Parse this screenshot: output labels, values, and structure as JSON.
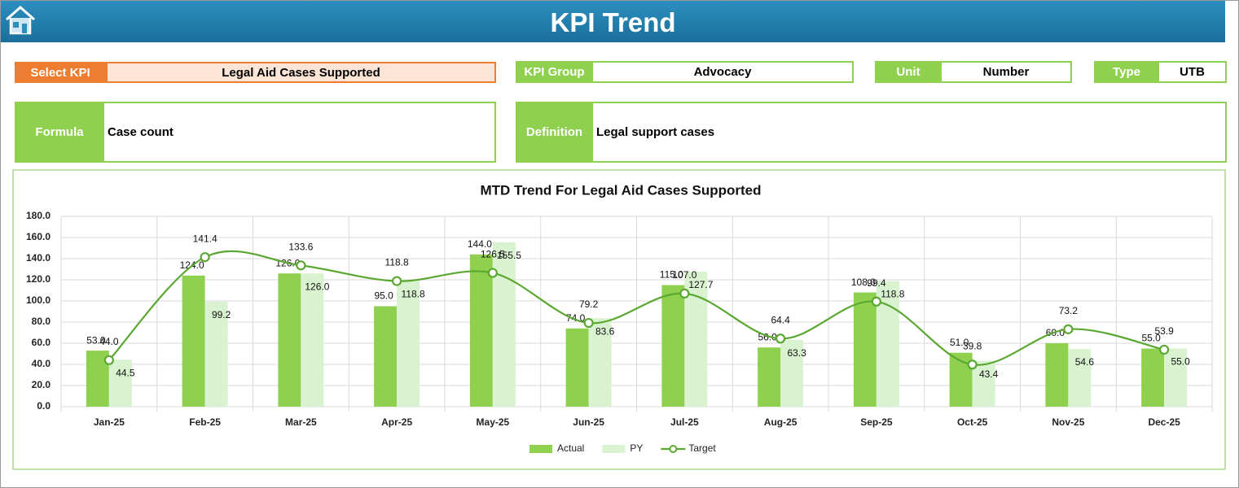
{
  "header": {
    "title": "KPI Trend"
  },
  "kpi_fields": [
    {
      "label": "Select KPI",
      "value": "Legal Aid Cases Supported"
    },
    {
      "label": "KPI Group",
      "value": "Advocacy"
    },
    {
      "label": "Unit",
      "value": "Number"
    },
    {
      "label": "Type",
      "value": "UTB"
    },
    {
      "label": "Formula",
      "value": "Case count"
    },
    {
      "label": "Definition",
      "value": "Legal support cases"
    }
  ],
  "chart_data": {
    "type": "combo",
    "title": "MTD Trend For Legal Aid Cases Supported",
    "categories": [
      "Jan-25",
      "Feb-25",
      "Mar-25",
      "Apr-25",
      "May-25",
      "Jun-25",
      "Jul-25",
      "Aug-25",
      "Sep-25",
      "Oct-25",
      "Nov-25",
      "Dec-25"
    ],
    "series": [
      {
        "name": "Actual",
        "type": "bar",
        "color": "#8fd14f",
        "values": [
          53,
          124,
          126,
          95,
          144,
          74,
          115,
          56,
          108,
          51,
          60,
          55
        ],
        "value_labels": [
          "53.0",
          "124.0",
          "126.0",
          "95.0",
          "144.0",
          "74.0",
          "115.0",
          "56.0",
          "108.0",
          "51.0",
          "60.0",
          "55.0"
        ]
      },
      {
        "name": "PY",
        "type": "bar",
        "color": "#d9f2d0",
        "values": [
          44.5,
          99.2,
          126,
          118.8,
          155.5,
          83.6,
          127.7,
          63.3,
          118.8,
          43.4,
          54.6,
          55
        ],
        "value_labels": [
          "44.5",
          "99.2",
          "126.0",
          "118.8",
          "155.5",
          "83.6",
          "127.7",
          "63.3",
          "118.8",
          "43.4",
          "54.6",
          "55.0"
        ]
      },
      {
        "name": "Target",
        "type": "line",
        "color": "#5aa832",
        "values": [
          44,
          141.4,
          133.6,
          118.8,
          126.5,
          79.2,
          107,
          64.4,
          99.4,
          39.8,
          73.2,
          53.9
        ],
        "value_labels": [
          "44.0",
          "141.4",
          "133.6",
          "118.8",
          "126.5",
          "79.2",
          "107.0",
          "64.4",
          "99.4",
          "39.8",
          "73.2",
          "53.9"
        ]
      }
    ],
    "ylim": [
      0,
      180
    ],
    "yticks": [
      {
        "value": 0,
        "label": "0.0"
      },
      {
        "value": 20,
        "label": "20.0"
      },
      {
        "value": 40,
        "label": "40.0"
      },
      {
        "value": 60,
        "label": "60.0"
      },
      {
        "value": 80,
        "label": "80.0"
      },
      {
        "value": 100,
        "label": "100.0"
      },
      {
        "value": 120,
        "label": "120.0"
      },
      {
        "value": 140,
        "label": "140.0"
      },
      {
        "value": 160,
        "label": "160.0"
      },
      {
        "value": 180,
        "label": "180.0"
      }
    ],
    "grid": true,
    "legend": "bottom"
  }
}
